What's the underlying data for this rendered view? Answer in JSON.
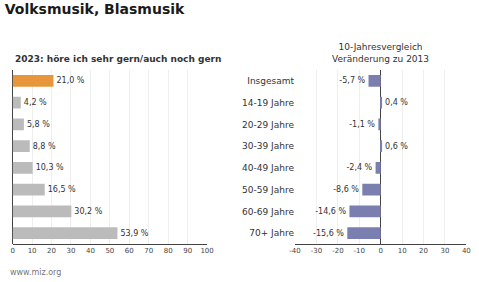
{
  "chart_data": [
    {
      "type": "bar",
      "orientation": "horizontal",
      "title": "Volksmusik, Blasmusik",
      "subtitle": "2023: höre ich sehr gern/auch noch gern",
      "annotations": [
        "www.miz.org"
      ],
      "categories": [
        "Insgesamt",
        "14-19 Jahre",
        "20-29 Jahre",
        "30-39 Jahre",
        "40-49 Jahre",
        "50-59 Jahre",
        "60-69 Jahre",
        "70+ Jahre"
      ],
      "values": [
        21.0,
        4.2,
        5.8,
        8.8,
        10.3,
        16.5,
        30.2,
        53.9
      ],
      "value_labels": [
        "21,0 %",
        "4,2 %",
        "5,8 %",
        "8,8 %",
        "10,3 %",
        "16,5 %",
        "30,2 %",
        "53,9 %"
      ],
      "colors": [
        "#E8963C",
        "#BBBBBB",
        "#BBBBBB",
        "#BBBBBB",
        "#BBBBBB",
        "#BBBBBB",
        "#BBBBBB",
        "#BBBBBB"
      ],
      "xlim": [
        0,
        100
      ],
      "xticks": [
        0,
        10,
        20,
        30,
        40,
        50,
        60,
        70,
        80,
        90,
        100
      ],
      "grid": true,
      "data_labels": true,
      "tick_labels": "x"
    },
    {
      "type": "bar",
      "orientation": "horizontal",
      "subtitle": "10-Jahresvergleich\nVeränderung zu 2013",
      "categories": [
        "Insgesamt",
        "14-19 Jahre",
        "20-29 Jahre",
        "30-39 Jahre",
        "40-49 Jahre",
        "50-59 Jahre",
        "60-69 Jahre",
        "70+ Jahre"
      ],
      "values": [
        -5.7,
        0.4,
        -1.1,
        0.6,
        -2.4,
        -8.6,
        -14.6,
        -15.6
      ],
      "value_labels": [
        "-5,7 %",
        "0,4 %",
        "-1,1 %",
        "0,6 %",
        "-2,4 %",
        "-8,6 %",
        "-14,6 %",
        "-15,6 %"
      ],
      "color": "#7B7FAF",
      "xlim": [
        -40,
        40
      ],
      "xticks": [
        -40,
        -30,
        -20,
        -10,
        0,
        10,
        20,
        30,
        40
      ],
      "grid": true,
      "data_labels": true
    }
  ]
}
